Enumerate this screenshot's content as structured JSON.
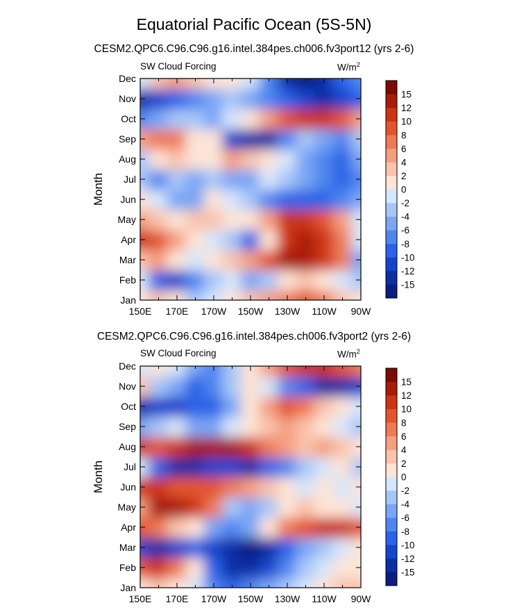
{
  "figure": {
    "title": "Equatorial Pacific Ocean (5S-5N)",
    "colors": {
      "palette": [
        "#0c1c80",
        "#0b2ea5",
        "#1644cc",
        "#2b63e6",
        "#4f86ef",
        "#7aa6f4",
        "#a7c6f8",
        "#d6e6fb",
        "#fde4d6",
        "#f9c3ac",
        "#f59f80",
        "#ee7a56",
        "#e3542f",
        "#cc3414",
        "#a81c08",
        "#7d0a03"
      ]
    }
  },
  "panels": [
    {
      "run_title": "CESM2.QPC6.C96.C96.g16.intel.384pes.ch006.fv3port12 (yrs 2-6)",
      "left_label": "SW Cloud Forcing",
      "units_base": "W/m",
      "units_sup": "2"
    },
    {
      "run_title": "CESM2.QPC6.C96.C96.g16.intel.384pes.ch006.fv3port2 (yrs 2-6)",
      "left_label": "SW Cloud Forcing",
      "units_base": "W/m",
      "units_sup": "2"
    }
  ],
  "chart_data": [
    {
      "type": "heatmap",
      "title": "CESM2.QPC6.C96.C96.g16.intel.384pes.ch006.fv3port12 (yrs 2-6)",
      "variable": "SW Cloud Forcing",
      "units": "W/m2",
      "xlabel": "",
      "ylabel": "Month",
      "x_ticks": [
        "150E",
        "170E",
        "170W",
        "150W",
        "130W",
        "110W",
        "90W"
      ],
      "y_ticks": [
        "Jan",
        "Feb",
        "Mar",
        "Apr",
        "May",
        "Jun",
        "Jul",
        "Aug",
        "Sep",
        "Oct",
        "Nov",
        "Dec"
      ],
      "colorbar_labels": [
        "-15",
        "-12",
        "-10",
        "-8",
        "-6",
        "-4",
        "-2",
        "0",
        "2",
        "4",
        "6",
        "8",
        "10",
        "12",
        "15"
      ],
      "grid_x": [
        "150E",
        "160E",
        "170E",
        "180",
        "170W",
        "160W",
        "150W",
        "140W",
        "130W",
        "120W",
        "110W",
        "100W",
        "90W"
      ],
      "values": [
        [
          2,
          4,
          2,
          -2,
          0,
          2,
          4,
          6,
          8,
          10,
          8,
          4,
          2
        ],
        [
          0,
          -8,
          -10,
          -6,
          -2,
          0,
          -4,
          -2,
          2,
          4,
          2,
          0,
          -2
        ],
        [
          4,
          6,
          2,
          0,
          2,
          4,
          6,
          10,
          15,
          15,
          12,
          8,
          -4
        ],
        [
          12,
          10,
          6,
          2,
          0,
          -2,
          -8,
          2,
          12,
          15,
          12,
          8,
          0
        ],
        [
          6,
          4,
          2,
          4,
          4,
          2,
          2,
          6,
          12,
          12,
          10,
          6,
          0
        ],
        [
          2,
          0,
          -4,
          -4,
          2,
          0,
          -2,
          -6,
          -8,
          -8,
          -8,
          -6,
          -4
        ],
        [
          -2,
          -6,
          -2,
          -4,
          -2,
          -4,
          -4,
          0,
          -2,
          -4,
          -6,
          -8,
          -6
        ],
        [
          -2,
          2,
          4,
          2,
          2,
          6,
          4,
          2,
          0,
          -4,
          -6,
          -8,
          -4
        ],
        [
          6,
          8,
          8,
          2,
          2,
          -10,
          -12,
          -12,
          -6,
          -2,
          -4,
          -6,
          -2
        ],
        [
          -6,
          -4,
          -2,
          -2,
          -4,
          0,
          2,
          6,
          10,
          12,
          12,
          10,
          6
        ],
        [
          -12,
          -10,
          -8,
          -6,
          -4,
          -2,
          -4,
          -6,
          -8,
          -10,
          -12,
          -10,
          -8
        ],
        [
          0,
          4,
          6,
          4,
          2,
          2,
          0,
          -6,
          -12,
          -15,
          -12,
          -8,
          -6
        ]
      ]
    },
    {
      "type": "heatmap",
      "title": "CESM2.QPC6.C96.C96.g16.intel.384pes.ch006.fv3port2 (yrs 2-6)",
      "variable": "SW Cloud Forcing",
      "units": "W/m2",
      "xlabel": "",
      "ylabel": "Month",
      "x_ticks": [
        "150E",
        "170E",
        "170W",
        "150W",
        "130W",
        "110W",
        "90W"
      ],
      "y_ticks": [
        "Jan",
        "Feb",
        "Mar",
        "Apr",
        "May",
        "Jun",
        "Jul",
        "Aug",
        "Sep",
        "Oct",
        "Nov",
        "Dec"
      ],
      "colorbar_labels": [
        "-15",
        "-12",
        "-10",
        "-8",
        "-6",
        "-4",
        "-2",
        "0",
        "2",
        "4",
        "6",
        "8",
        "10",
        "12",
        "15"
      ],
      "grid_x": [
        "150E",
        "160E",
        "170E",
        "180",
        "170W",
        "160W",
        "150W",
        "140W",
        "130W",
        "120W",
        "110W",
        "100W",
        "90W"
      ],
      "values": [
        [
          2,
          4,
          2,
          0,
          -6,
          -8,
          -6,
          -4,
          -2,
          0,
          2,
          4,
          4
        ],
        [
          10,
          12,
          8,
          2,
          -8,
          -12,
          -12,
          -10,
          -6,
          -2,
          0,
          2,
          2
        ],
        [
          -10,
          -12,
          -10,
          -8,
          -10,
          -12,
          -15,
          -12,
          -8,
          -4,
          -2,
          0,
          2
        ],
        [
          10,
          8,
          4,
          2,
          -4,
          -6,
          -4,
          2,
          8,
          10,
          12,
          12,
          10
        ],
        [
          6,
          15,
          15,
          12,
          8,
          -2,
          -4,
          -2,
          2,
          4,
          2,
          2,
          0
        ],
        [
          12,
          12,
          10,
          10,
          10,
          8,
          6,
          4,
          2,
          0,
          2,
          0,
          2
        ],
        [
          0,
          -8,
          -12,
          -12,
          -10,
          -10,
          -12,
          -8,
          -6,
          -2,
          0,
          2,
          -2
        ],
        [
          12,
          10,
          12,
          15,
          15,
          15,
          12,
          8,
          6,
          4,
          6,
          4,
          2
        ],
        [
          -4,
          -2,
          0,
          -4,
          -4,
          0,
          2,
          4,
          6,
          4,
          2,
          0,
          -2
        ],
        [
          -12,
          -10,
          -10,
          -8,
          -8,
          -4,
          2,
          6,
          10,
          8,
          4,
          2,
          0
        ],
        [
          4,
          -2,
          -4,
          -8,
          -6,
          -2,
          2,
          0,
          -6,
          -8,
          -12,
          -12,
          -10
        ],
        [
          0,
          2,
          0,
          -4,
          -6,
          -2,
          2,
          6,
          10,
          12,
          12,
          10,
          8
        ]
      ]
    }
  ]
}
